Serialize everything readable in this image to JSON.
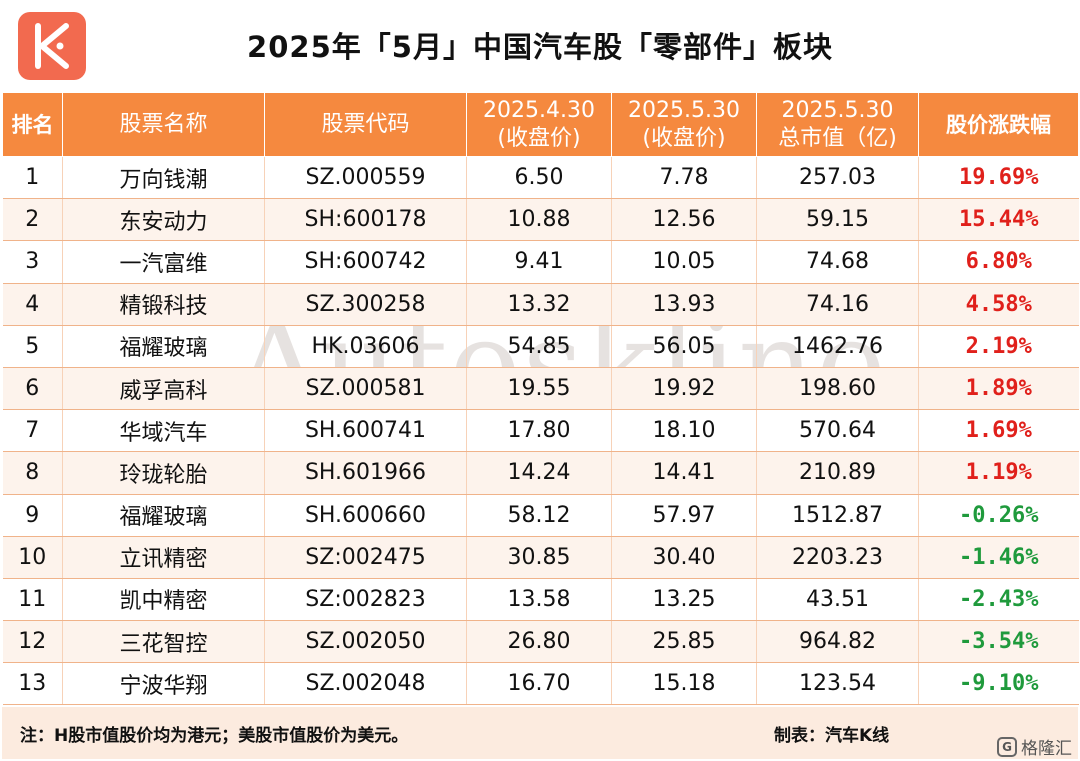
{
  "title": "2025年「5月」中国汽车股「零部件」板块",
  "logo": {
    "icon": "k-logo-icon",
    "color": "#f26a4f"
  },
  "watermark": "Autoskline",
  "headers": [
    {
      "line1": "排名",
      "line2": ""
    },
    {
      "line1": "股票名称",
      "line2": ""
    },
    {
      "line1": "股票代码",
      "line2": ""
    },
    {
      "line1": "2025.4.30",
      "line2": "(收盘价)"
    },
    {
      "line1": "2025.5.30",
      "line2": "(收盘价)"
    },
    {
      "line1": "2025.5.30",
      "line2": "总市值（亿)"
    },
    {
      "line1": "股价涨跌幅",
      "line2": ""
    }
  ],
  "rows": [
    {
      "rank": "1",
      "name": "万向钱潮",
      "code": "SZ.000559",
      "close_apr": "6.50",
      "close_may": "7.78",
      "market_cap": "257.03",
      "change": "19.69%",
      "dir": "up"
    },
    {
      "rank": "2",
      "name": "东安动力",
      "code": "SH:600178",
      "close_apr": "10.88",
      "close_may": "12.56",
      "market_cap": "59.15",
      "change": "15.44%",
      "dir": "up"
    },
    {
      "rank": "3",
      "name": "一汽富维",
      "code": "SH:600742",
      "close_apr": "9.41",
      "close_may": "10.05",
      "market_cap": "74.68",
      "change": "6.80%",
      "dir": "up"
    },
    {
      "rank": "4",
      "name": "精锻科技",
      "code": "SZ.300258",
      "close_apr": "13.32",
      "close_may": "13.93",
      "market_cap": "74.16",
      "change": "4.58%",
      "dir": "up"
    },
    {
      "rank": "5",
      "name": "福耀玻璃",
      "code": "HK.03606",
      "close_apr": "54.85",
      "close_may": "56.05",
      "market_cap": "1462.76",
      "change": "2.19%",
      "dir": "up"
    },
    {
      "rank": "6",
      "name": "威孚高科",
      "code": "SZ.000581",
      "close_apr": "19.55",
      "close_may": "19.92",
      "market_cap": "198.60",
      "change": "1.89%",
      "dir": "up"
    },
    {
      "rank": "7",
      "name": "华域汽车",
      "code": "SH.600741",
      "close_apr": "17.80",
      "close_may": "18.10",
      "market_cap": "570.64",
      "change": "1.69%",
      "dir": "up"
    },
    {
      "rank": "8",
      "name": "玲珑轮胎",
      "code": "SH.601966",
      "close_apr": "14.24",
      "close_may": "14.41",
      "market_cap": "210.89",
      "change": "1.19%",
      "dir": "up"
    },
    {
      "rank": "9",
      "name": "福耀玻璃",
      "code": "SH.600660",
      "close_apr": "58.12",
      "close_may": "57.97",
      "market_cap": "1512.87",
      "change": "-0.26%",
      "dir": "down"
    },
    {
      "rank": "10",
      "name": "立讯精密",
      "code": "SZ:002475",
      "close_apr": "30.85",
      "close_may": "30.40",
      "market_cap": "2203.23",
      "change": "-1.46%",
      "dir": "down"
    },
    {
      "rank": "11",
      "name": "凯中精密",
      "code": "SZ:002823",
      "close_apr": "13.58",
      "close_may": "13.25",
      "market_cap": "43.51",
      "change": "-2.43%",
      "dir": "down"
    },
    {
      "rank": "12",
      "name": "三花智控",
      "code": "SZ.002050",
      "close_apr": "26.80",
      "close_may": "25.85",
      "market_cap": "964.82",
      "change": "-3.54%",
      "dir": "down"
    },
    {
      "rank": "13",
      "name": "宁波华翔",
      "code": "SZ.002048",
      "close_apr": "16.70",
      "close_may": "15.18",
      "market_cap": "123.54",
      "change": "-9.10%",
      "dir": "down"
    }
  ],
  "footer": {
    "note": "注：H股市值股价均为港元；美股市值股价为美元。",
    "maker": "制表：汽车K线"
  },
  "brand": {
    "mark": "G",
    "text": "格隆汇"
  },
  "colors": {
    "header_bg": "#f5893f",
    "up": "#e0201b",
    "down": "#1f9a3c",
    "footer_bg": "#fcebdf"
  }
}
